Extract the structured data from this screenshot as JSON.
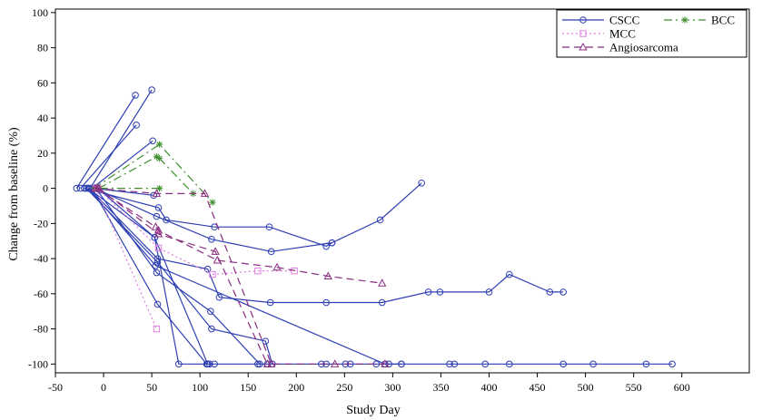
{
  "chart_data": {
    "type": "line",
    "xlabel": "Study Day",
    "ylabel": "Change from baseline (%)",
    "xlim": [
      -50,
      670
    ],
    "ylim": [
      -105,
      102
    ],
    "xticks": [
      -50,
      0,
      50,
      100,
      150,
      200,
      250,
      300,
      350,
      400,
      450,
      500,
      550,
      600
    ],
    "yticks": [
      100,
      80,
      60,
      40,
      20,
      0,
      -20,
      -40,
      -60,
      -80,
      -100
    ],
    "grid": false,
    "legend_position": "top-right",
    "legend": [
      {
        "label": "CSCC",
        "color": "#2e3fb3",
        "marker": "circle",
        "dash": "solid"
      },
      {
        "label": "BCC",
        "color": "#3f8f2f",
        "marker": "star",
        "dash": "dashdot"
      },
      {
        "label": "MCC",
        "color": "#e07de0",
        "marker": "square",
        "dash": "dot"
      },
      {
        "label": "Angiosarcoma",
        "color": "#8a2c80",
        "marker": "triangle",
        "dash": "dash"
      }
    ],
    "series": [
      {
        "group": "CSCC",
        "points": [
          [
            -28,
            0
          ],
          [
            33,
            53
          ]
        ]
      },
      {
        "group": "CSCC",
        "points": [
          [
            -24,
            0
          ],
          [
            34,
            36
          ]
        ]
      },
      {
        "group": "CSCC",
        "points": [
          [
            -14,
            0
          ],
          [
            50,
            56
          ]
        ]
      },
      {
        "group": "CSCC",
        "points": [
          [
            -12,
            0
          ],
          [
            51,
            27
          ]
        ]
      },
      {
        "group": "CSCC",
        "points": [
          [
            -10,
            0
          ],
          [
            52,
            -4
          ]
        ]
      },
      {
        "group": "CSCC",
        "points": [
          [
            -16,
            0
          ],
          [
            53,
            -28
          ],
          [
            78,
            -100
          ],
          [
            110,
            -100
          ],
          [
            115,
            -100
          ],
          [
            160,
            -100
          ],
          [
            170,
            -100
          ],
          [
            226,
            -100
          ],
          [
            231,
            -100
          ],
          [
            251,
            -100
          ],
          [
            256,
            -100
          ],
          [
            283,
            -100
          ],
          [
            296,
            -100
          ],
          [
            309,
            -100
          ]
        ]
      },
      {
        "group": "CSCC",
        "points": [
          [
            -20,
            0
          ],
          [
            57,
            -11
          ],
          [
            65,
            -18
          ],
          [
            115,
            -22
          ],
          [
            172,
            -22
          ],
          [
            231,
            -33
          ],
          [
            237,
            -31
          ],
          [
            287,
            -18
          ],
          [
            330,
            3
          ]
        ]
      },
      {
        "group": "CSCC",
        "points": [
          [
            -9,
            0
          ],
          [
            55,
            -16
          ],
          [
            112,
            -29
          ],
          [
            174,
            -36
          ],
          [
            237,
            -31
          ]
        ]
      },
      {
        "group": "CSCC",
        "points": [
          [
            -15,
            0
          ],
          [
            56,
            -40
          ],
          [
            108,
            -46
          ],
          [
            120,
            -62
          ],
          [
            173,
            -65
          ],
          [
            231,
            -65
          ],
          [
            289,
            -65
          ],
          [
            337,
            -59
          ],
          [
            349,
            -59
          ],
          [
            400,
            -59
          ],
          [
            421,
            -49
          ],
          [
            463,
            -59
          ],
          [
            477,
            -59
          ]
        ]
      },
      {
        "group": "CSCC",
        "points": [
          [
            -18,
            0
          ],
          [
            56,
            -42
          ],
          [
            112,
            -80
          ],
          [
            168,
            -87
          ],
          [
            175,
            -100
          ]
        ]
      },
      {
        "group": "CSCC",
        "points": [
          [
            -8,
            0
          ],
          [
            55,
            -48
          ],
          [
            111,
            -70
          ],
          [
            162,
            -100
          ]
        ]
      },
      {
        "group": "CSCC",
        "points": [
          [
            -12,
            0
          ],
          [
            56,
            -66
          ],
          [
            107,
            -100
          ]
        ]
      },
      {
        "group": "CSCC",
        "points": [
          [
            -16,
            0
          ],
          [
            54,
            -44
          ],
          [
            292,
            -100
          ],
          [
            309,
            -100
          ],
          [
            359,
            -100
          ],
          [
            364,
            -100
          ],
          [
            396,
            -100
          ],
          [
            421,
            -100
          ],
          [
            477,
            -100
          ],
          [
            508,
            -100
          ],
          [
            563,
            -100
          ],
          [
            590,
            -100
          ]
        ]
      },
      {
        "group": "CSCC",
        "points": [
          [
            -6,
            0
          ],
          [
            53,
            -28
          ],
          [
            108,
            -100
          ]
        ]
      },
      {
        "group": "BCC",
        "points": [
          [
            -10,
            0
          ],
          [
            58,
            25
          ],
          [
            113,
            -8
          ]
        ]
      },
      {
        "group": "BCC",
        "points": [
          [
            -5,
            0
          ],
          [
            55,
            18
          ],
          [
            58,
            17
          ],
          [
            93,
            -3
          ]
        ]
      },
      {
        "group": "BCC",
        "points": [
          [
            -4,
            0
          ],
          [
            58,
            0
          ]
        ]
      },
      {
        "group": "MCC",
        "points": [
          [
            -8,
            0
          ],
          [
            55,
            -80
          ]
        ]
      },
      {
        "group": "MCC",
        "points": [
          [
            -6,
            0
          ],
          [
            57,
            -34
          ],
          [
            113,
            -49
          ],
          [
            160,
            -47
          ],
          [
            198,
            -47
          ]
        ]
      },
      {
        "group": "Angiosarcoma",
        "points": [
          [
            -7,
            0
          ],
          [
            54,
            -22
          ],
          [
            57,
            -24
          ],
          [
            118,
            -41
          ],
          [
            180,
            -45
          ],
          [
            233,
            -50
          ],
          [
            289,
            -54
          ]
        ]
      },
      {
        "group": "Angiosarcoma",
        "points": [
          [
            -9,
            0
          ],
          [
            55,
            -3
          ],
          [
            105,
            -3
          ],
          [
            174,
            -100
          ],
          [
            240,
            -100
          ],
          [
            292,
            -100
          ]
        ]
      },
      {
        "group": "Angiosarcoma",
        "points": [
          [
            -5,
            0
          ],
          [
            57,
            -26
          ],
          [
            116,
            -36
          ],
          [
            170,
            -100
          ]
        ]
      }
    ]
  }
}
